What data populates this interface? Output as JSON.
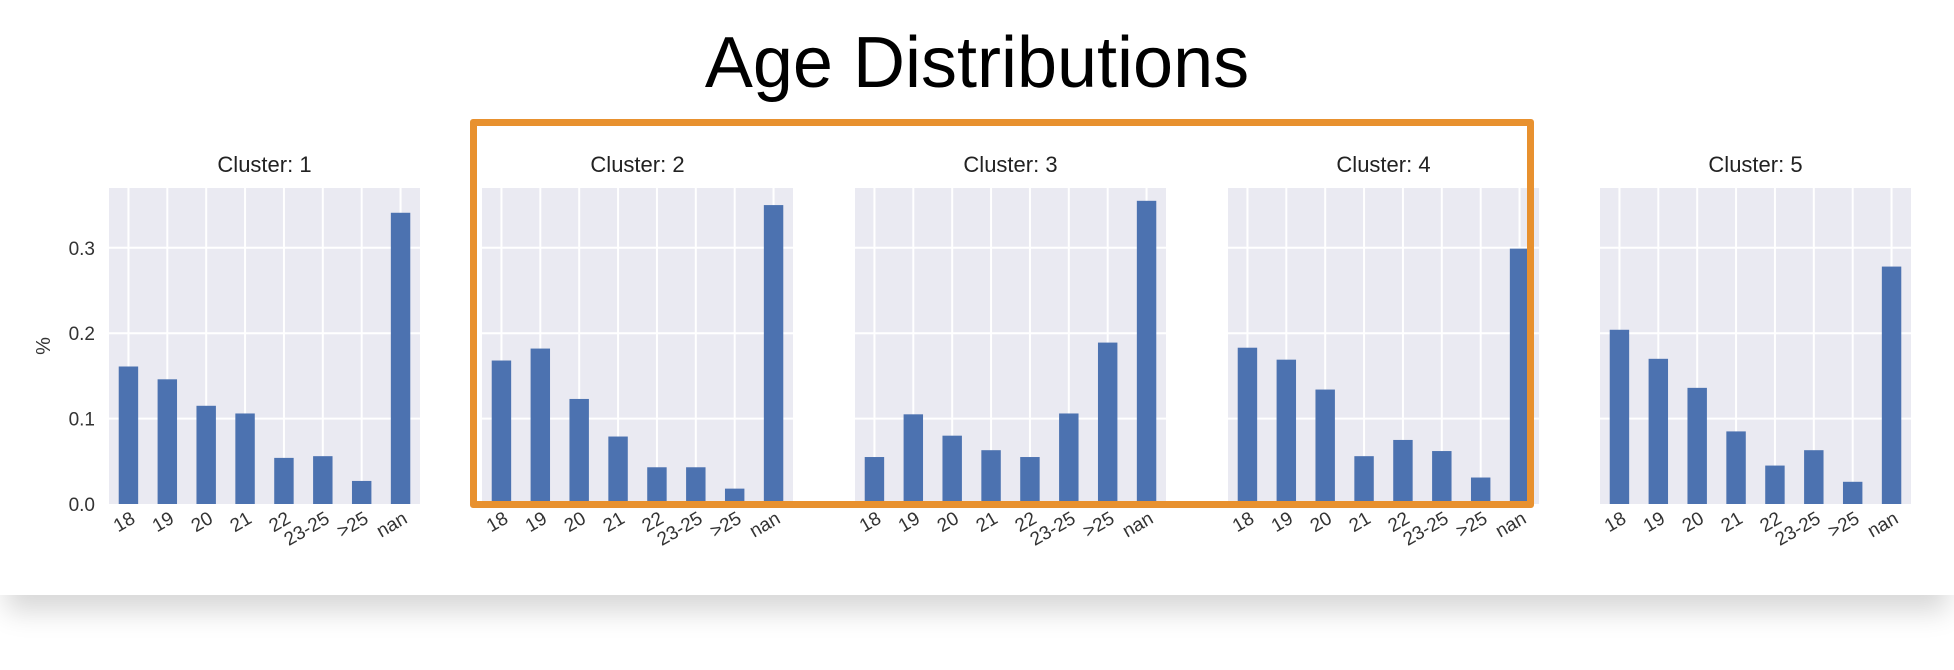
{
  "title": "Age Distributions",
  "accent_color": "#e8912f",
  "bar_color": "#4c72b0",
  "plot_background": "#eaeaf2",
  "highlight": {
    "label": "clusters-2-to-4"
  },
  "chart_data": [
    {
      "type": "bar",
      "title": "Cluster: 1",
      "ylabel": "%",
      "categories": [
        "18",
        "19",
        "20",
        "21",
        "22",
        "23-25",
        ">25",
        "nan"
      ],
      "values": [
        0.161,
        0.146,
        0.115,
        0.106,
        0.054,
        0.056,
        0.027,
        0.341
      ],
      "ylim": [
        0,
        0.37
      ],
      "yticks": [
        "0.0",
        "0.1",
        "0.2",
        "0.3"
      ],
      "grid": true
    },
    {
      "type": "bar",
      "title": "Cluster: 2",
      "categories": [
        "18",
        "19",
        "20",
        "21",
        "22",
        "23-25",
        ">25",
        "nan"
      ],
      "values": [
        0.168,
        0.182,
        0.123,
        0.079,
        0.043,
        0.043,
        0.018,
        0.35
      ],
      "ylim": [
        0,
        0.37
      ],
      "grid": true
    },
    {
      "type": "bar",
      "title": "Cluster: 3",
      "categories": [
        "18",
        "19",
        "20",
        "21",
        "22",
        "23-25",
        ">25",
        "nan"
      ],
      "values": [
        0.055,
        0.105,
        0.08,
        0.063,
        0.055,
        0.106,
        0.189,
        0.355
      ],
      "ylim": [
        0,
        0.37
      ],
      "grid": true
    },
    {
      "type": "bar",
      "title": "Cluster: 4",
      "categories": [
        "18",
        "19",
        "20",
        "21",
        "22",
        "23-25",
        ">25",
        "nan"
      ],
      "values": [
        0.183,
        0.169,
        0.134,
        0.056,
        0.075,
        0.062,
        0.031,
        0.299
      ],
      "ylim": [
        0,
        0.37
      ],
      "grid": true
    },
    {
      "type": "bar",
      "title": "Cluster: 5",
      "categories": [
        "18",
        "19",
        "20",
        "21",
        "22",
        "23-25",
        ">25",
        "nan"
      ],
      "values": [
        0.204,
        0.17,
        0.136,
        0.085,
        0.045,
        0.063,
        0.026,
        0.278
      ],
      "ylim": [
        0,
        0.37
      ],
      "grid": true
    }
  ]
}
